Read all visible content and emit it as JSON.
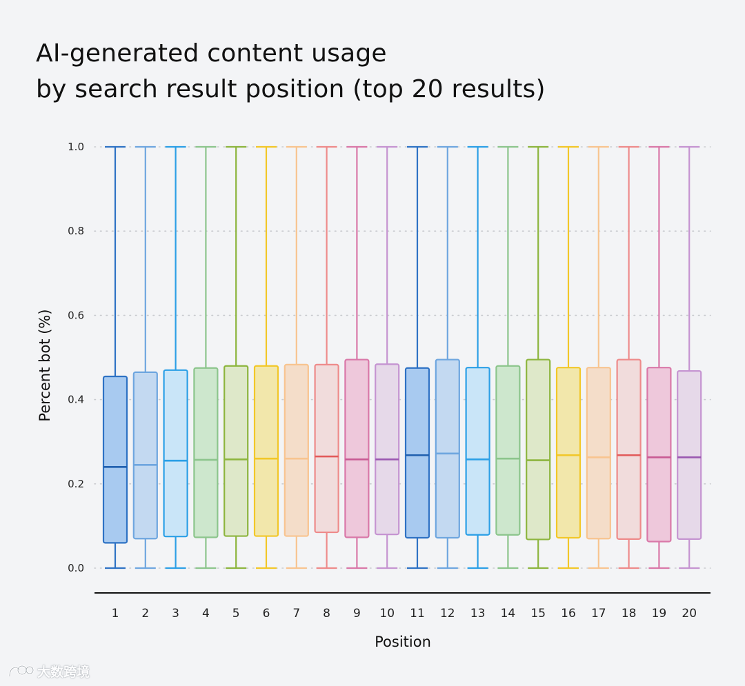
{
  "page": {
    "title_line1": "AI-generated content usage",
    "title_line2": "by search result position (top 20 results)",
    "watermark_text": "大数跨境",
    "watermark_icon": "logo-icon"
  },
  "chart_data": {
    "type": "boxplot",
    "title": "AI-generated content usage by search result position (top 20 results)",
    "xlabel": "Position",
    "ylabel": "Percent bot (%)",
    "ylim": [
      0,
      1.0
    ],
    "yticks": [
      "0.0",
      "0.2",
      "0.4",
      "0.6",
      "0.8",
      "1.0"
    ],
    "grid": true,
    "categories": [
      "1",
      "2",
      "3",
      "4",
      "5",
      "6",
      "7",
      "8",
      "9",
      "10",
      "11",
      "12",
      "13",
      "14",
      "15",
      "16",
      "17",
      "18",
      "19",
      "20"
    ],
    "series": [
      {
        "position": "1",
        "min": 0,
        "q1": 0.06,
        "median": 0.24,
        "q3": 0.455,
        "max": 1.0,
        "stroke": "#2e72c4",
        "fill": "#a8caf0"
      },
      {
        "position": "2",
        "min": 0,
        "q1": 0.07,
        "median": 0.245,
        "q3": 0.465,
        "max": 1.0,
        "stroke": "#6ea6df",
        "fill": "#c3d9f1"
      },
      {
        "position": "3",
        "min": 0,
        "q1": 0.075,
        "median": 0.255,
        "q3": 0.47,
        "max": 1.0,
        "stroke": "#2b9fe6",
        "fill": "#c9e5f8"
      },
      {
        "position": "4",
        "min": 0,
        "q1": 0.073,
        "median": 0.257,
        "q3": 0.475,
        "max": 1.0,
        "stroke": "#8cc58c",
        "fill": "#cde7cd"
      },
      {
        "position": "5",
        "min": 0,
        "q1": 0.076,
        "median": 0.258,
        "q3": 0.48,
        "max": 1.0,
        "stroke": "#8db53e",
        "fill": "#dee8c9"
      },
      {
        "position": "6",
        "min": 0,
        "q1": 0.076,
        "median": 0.26,
        "q3": 0.48,
        "max": 1.0,
        "stroke": "#f2c728",
        "fill": "#f2e7ab"
      },
      {
        "position": "7",
        "min": 0,
        "q1": 0.076,
        "median": 0.26,
        "q3": 0.483,
        "max": 1.0,
        "stroke": "#f8c48f",
        "fill": "#f4ddc9"
      },
      {
        "position": "8",
        "min": 0,
        "q1": 0.085,
        "median": 0.265,
        "q3": 0.483,
        "max": 1.0,
        "stroke": "#ee8a8a",
        "fill": "#f1dcdc"
      },
      {
        "position": "9",
        "min": 0,
        "q1": 0.073,
        "median": 0.258,
        "q3": 0.495,
        "max": 1.0,
        "stroke": "#d978a8",
        "fill": "#eec8db"
      },
      {
        "position": "10",
        "min": 0,
        "q1": 0.08,
        "median": 0.258,
        "q3": 0.484,
        "max": 1.0,
        "stroke": "#c594d1",
        "fill": "#e6d9e9"
      },
      {
        "position": "11",
        "min": 0,
        "q1": 0.072,
        "median": 0.268,
        "q3": 0.475,
        "max": 1.0,
        "stroke": "#2e72c4",
        "fill": "#a8caf0"
      },
      {
        "position": "12",
        "min": 0,
        "q1": 0.072,
        "median": 0.272,
        "q3": 0.495,
        "max": 1.0,
        "stroke": "#6ea6df",
        "fill": "#c3d9f1"
      },
      {
        "position": "13",
        "min": 0,
        "q1": 0.079,
        "median": 0.258,
        "q3": 0.476,
        "max": 1.0,
        "stroke": "#2b9fe6",
        "fill": "#c9e5f8"
      },
      {
        "position": "14",
        "min": 0,
        "q1": 0.079,
        "median": 0.26,
        "q3": 0.48,
        "max": 1.0,
        "stroke": "#8cc58c",
        "fill": "#cde7cd"
      },
      {
        "position": "15",
        "min": 0,
        "q1": 0.068,
        "median": 0.256,
        "q3": 0.495,
        "max": 1.0,
        "stroke": "#8db53e",
        "fill": "#dee8c9"
      },
      {
        "position": "16",
        "min": 0,
        "q1": 0.072,
        "median": 0.268,
        "q3": 0.476,
        "max": 1.0,
        "stroke": "#f2c728",
        "fill": "#f2e7ab"
      },
      {
        "position": "17",
        "min": 0,
        "q1": 0.07,
        "median": 0.263,
        "q3": 0.476,
        "max": 1.0,
        "stroke": "#f8c48f",
        "fill": "#f4ddc9"
      },
      {
        "position": "18",
        "min": 0,
        "q1": 0.069,
        "median": 0.268,
        "q3": 0.495,
        "max": 1.0,
        "stroke": "#ee8a8a",
        "fill": "#f1dcdc"
      },
      {
        "position": "19",
        "min": 0,
        "q1": 0.063,
        "median": 0.263,
        "q3": 0.476,
        "max": 1.0,
        "stroke": "#d978a8",
        "fill": "#eec8db"
      },
      {
        "position": "20",
        "min": 0,
        "q1": 0.069,
        "median": 0.263,
        "q3": 0.468,
        "max": 1.0,
        "stroke": "#c594d1",
        "fill": "#e6d9e9"
      }
    ],
    "colors": {
      "grid": "#c9cbcf",
      "axis": "#111111",
      "median_1": "#1f5fae",
      "median_8": "#e25a5a",
      "median_9": "#c85a93",
      "median_10": "#9a58b0"
    }
  }
}
